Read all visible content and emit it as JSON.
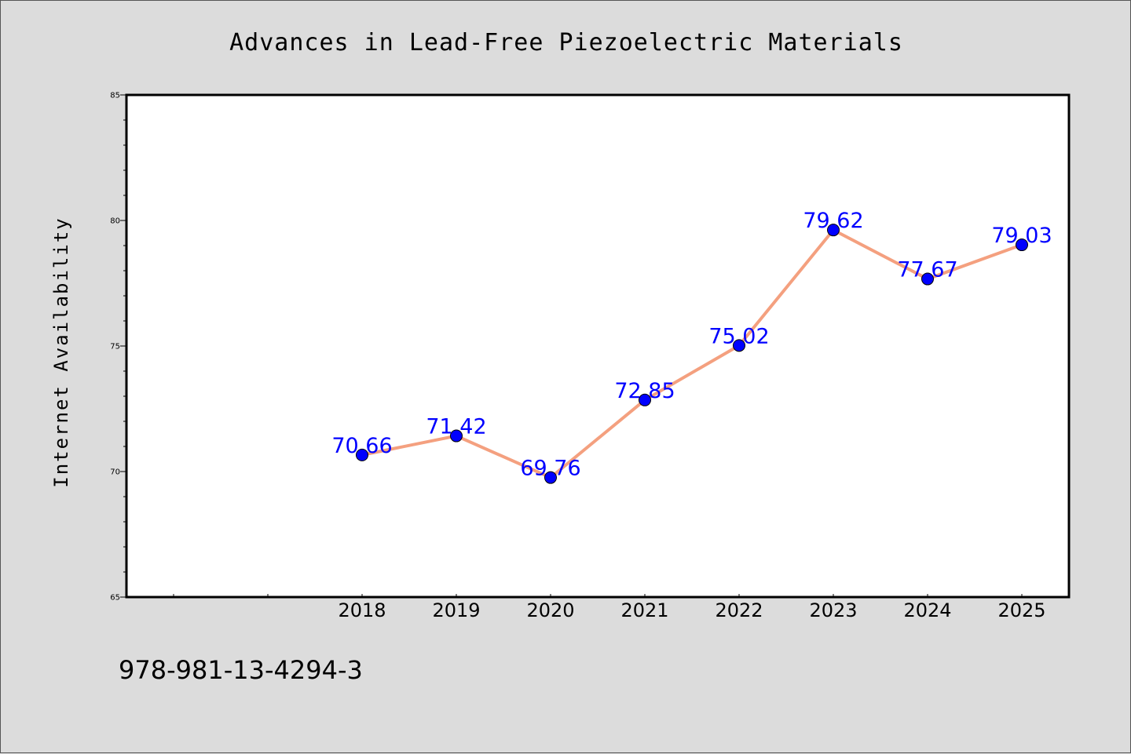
{
  "colors": {
    "background": "#dcdcdc",
    "plot_background": "#ffffff",
    "line": "#f4a07f",
    "marker": "#0000ff",
    "data_label": "#0000ff"
  },
  "footer": {
    "isbn": "978-981-13-4294-3"
  },
  "chart_data": {
    "type": "line",
    "title": "Advances in Lead-Free Piezoelectric Materials",
    "xlabel": "",
    "ylabel": "Internet Availability",
    "x": [
      "2018",
      "2019",
      "2020",
      "2021",
      "2022",
      "2023",
      "2024",
      "2025"
    ],
    "series": [
      {
        "values": [
          70.66,
          71.42,
          69.76,
          72.85,
          75.02,
          79.62,
          77.67,
          79.03
        ]
      }
    ],
    "data_labels": [
      "70.66",
      "71.42",
      "69.76",
      "72.85",
      "75.02",
      "79.62",
      "77.67",
      "79.03"
    ],
    "ylim": [
      65,
      85
    ],
    "yticks": [
      "65",
      "70",
      "75",
      "80",
      "85"
    ],
    "grid": false,
    "legend": "none"
  }
}
